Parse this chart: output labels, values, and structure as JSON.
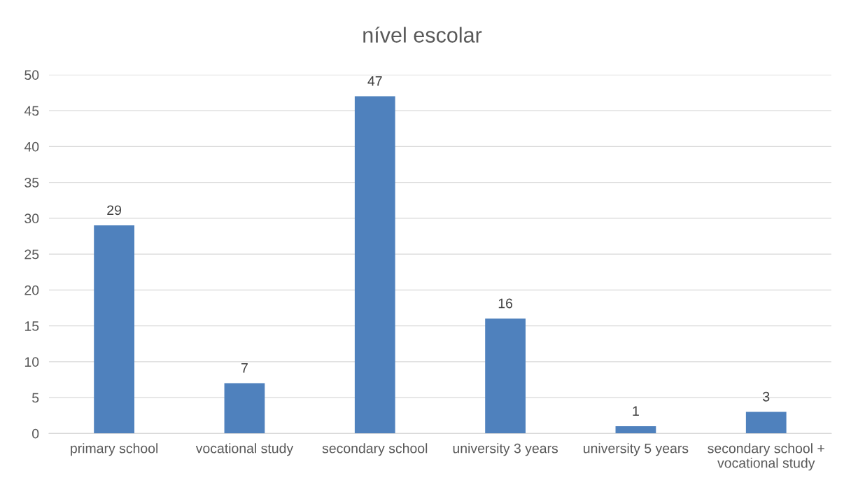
{
  "chart_data": {
    "type": "bar",
    "title": "nível escolar",
    "categories": [
      "primary school",
      "vocational study",
      "secondary school",
      "university 3 years",
      "university 5 years",
      "secondary school +\nvocational study"
    ],
    "values": [
      29,
      7,
      47,
      16,
      1,
      3
    ],
    "color": "#4f81bd",
    "ylim": [
      0,
      50
    ],
    "yticks": [
      0,
      5,
      10,
      15,
      20,
      25,
      30,
      35,
      40,
      45,
      50
    ],
    "grid": "y",
    "data_labels": true,
    "legend": false
  }
}
